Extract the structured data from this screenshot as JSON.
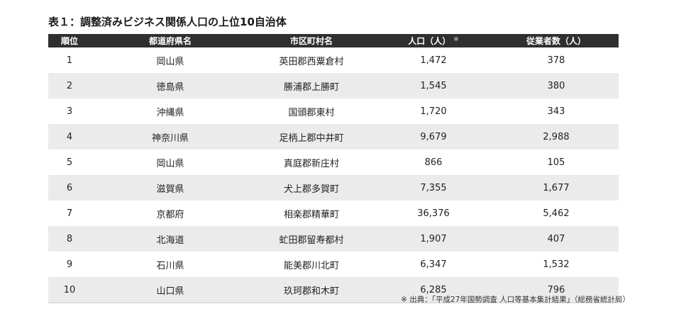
{
  "title": "表１：調整済みビジネス関係人口の上位10自治体",
  "table": {
    "headers": {
      "rank": "順位",
      "prefecture": "都道府県名",
      "municipality": "市区町村名",
      "population": "人口（人）",
      "population_mark": "※",
      "employees": "従業者数（人）"
    },
    "rows": [
      {
        "rank": "1",
        "prefecture": "岡山県",
        "municipality": "英田郡西粟倉村",
        "population": "1,472",
        "employees": "378"
      },
      {
        "rank": "2",
        "prefecture": "徳島県",
        "municipality": "勝浦郡上勝町",
        "population": "1,545",
        "employees": "380"
      },
      {
        "rank": "3",
        "prefecture": "沖縄県",
        "municipality": "国頭郡東村",
        "population": "1,720",
        "employees": "343"
      },
      {
        "rank": "4",
        "prefecture": "神奈川県",
        "municipality": "足柄上郡中井町",
        "population": "9,679",
        "employees": "2,988"
      },
      {
        "rank": "5",
        "prefecture": "岡山県",
        "municipality": "真庭郡新庄村",
        "population": "866",
        "employees": "105"
      },
      {
        "rank": "6",
        "prefecture": "滋賀県",
        "municipality": "犬上郡多賀町",
        "population": "7,355",
        "employees": "1,677"
      },
      {
        "rank": "7",
        "prefecture": "京都府",
        "municipality": "相楽郡精華町",
        "population": "36,376",
        "employees": "5,462"
      },
      {
        "rank": "8",
        "prefecture": "北海道",
        "municipality": "虻田郡留寿都村",
        "population": "1,907",
        "employees": "407"
      },
      {
        "rank": "9",
        "prefecture": "石川県",
        "municipality": "能美郡川北町",
        "population": "6,347",
        "employees": "1,532"
      },
      {
        "rank": "10",
        "prefecture": "山口県",
        "municipality": "玖珂郡和木町",
        "population": "6,285",
        "employees": "796"
      }
    ]
  },
  "source_note": "※ 出典：「平成27年国勢調査 人口等基本集計結果」（総務省統計局）"
}
